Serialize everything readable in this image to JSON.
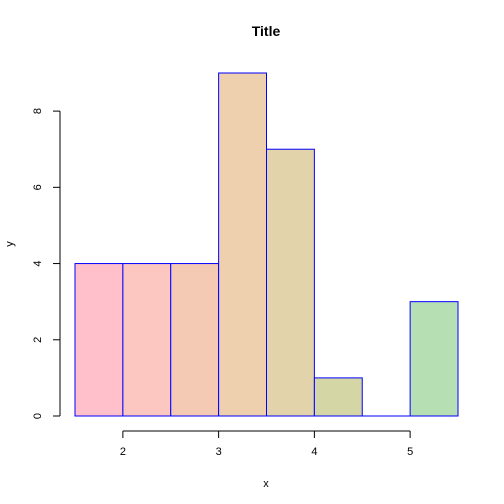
{
  "chart_data": {
    "type": "bar",
    "title": "Title",
    "xlabel": "x",
    "ylabel": "y",
    "bins": [
      {
        "x0": 1.5,
        "x1": 2.0,
        "value": 4,
        "color": "#FFC0CB"
      },
      {
        "x0": 2.0,
        "x1": 2.5,
        "value": 4,
        "color": "#FBC7C0"
      },
      {
        "x0": 2.5,
        "x1": 3.0,
        "value": 4,
        "color": "#F5CAB5"
      },
      {
        "x0": 3.0,
        "x1": 3.5,
        "value": 9,
        "color": "#EED0AF"
      },
      {
        "x0": 3.5,
        "x1": 4.0,
        "value": 7,
        "color": "#E2D3AA"
      },
      {
        "x0": 4.0,
        "x1": 4.5,
        "value": 1,
        "color": "#D5D6A6"
      },
      {
        "x0": 4.5,
        "x1": 5.0,
        "value": 0,
        "color": "#C8D9AA"
      },
      {
        "x0": 5.0,
        "x1": 5.5,
        "value": 3,
        "color": "#B6E0B4"
      }
    ],
    "border_color": "#0000FF",
    "xlim": [
      1.5,
      5.5
    ],
    "ylim": [
      0,
      9
    ],
    "xticks": [
      2,
      3,
      4,
      5
    ],
    "yticks": [
      0,
      2,
      4,
      6,
      8
    ],
    "grid": false
  }
}
